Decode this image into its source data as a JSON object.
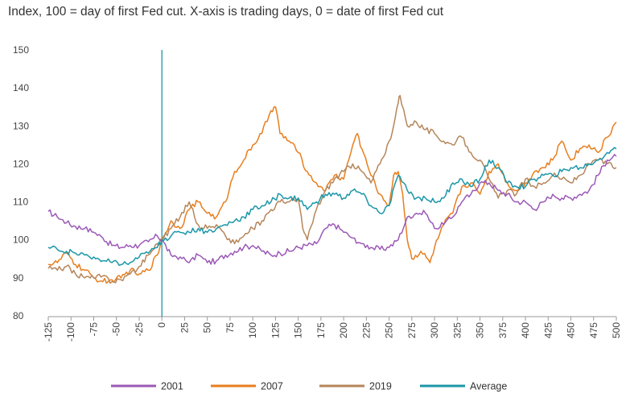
{
  "chart_data": {
    "type": "line",
    "subtitle": "Index, 100 = day of first Fed cut. X-axis is trading days, 0 = date of first Fed cut",
    "xlabel": "",
    "ylabel": "",
    "xlim": [
      -125,
      500
    ],
    "ylim": [
      80,
      150
    ],
    "x_ticks": [
      -125,
      -100,
      -75,
      -50,
      -25,
      0,
      25,
      50,
      75,
      100,
      125,
      150,
      175,
      200,
      225,
      250,
      275,
      300,
      325,
      350,
      375,
      400,
      425,
      450,
      475,
      500
    ],
    "y_ticks": [
      80,
      90,
      100,
      110,
      120,
      130,
      140,
      150
    ],
    "grid": false,
    "legend_position": "bottom",
    "vertical_marker_x": 0,
    "series": [
      {
        "name": "2001",
        "color": "#9b59b6",
        "points": [
          [
            -125,
            107.5
          ],
          [
            -115,
            106
          ],
          [
            -105,
            104.5
          ],
          [
            -95,
            103.5
          ],
          [
            -85,
            103
          ],
          [
            -75,
            102
          ],
          [
            -65,
            100.5
          ],
          [
            -55,
            98.5
          ],
          [
            -45,
            98
          ],
          [
            -35,
            98.5
          ],
          [
            -25,
            98.5
          ],
          [
            -15,
            99.5
          ],
          [
            -5,
            101
          ],
          [
            0,
            100
          ],
          [
            10,
            96
          ],
          [
            20,
            95.5
          ],
          [
            30,
            94
          ],
          [
            40,
            96
          ],
          [
            50,
            94
          ],
          [
            60,
            94.5
          ],
          [
            70,
            96
          ],
          [
            80,
            97
          ],
          [
            90,
            98
          ],
          [
            100,
            98.5
          ],
          [
            110,
            97
          ],
          [
            120,
            96
          ],
          [
            130,
            96.5
          ],
          [
            140,
            97
          ],
          [
            150,
            98
          ],
          [
            160,
            98.5
          ],
          [
            170,
            99
          ],
          [
            180,
            103
          ],
          [
            190,
            104
          ],
          [
            200,
            102
          ],
          [
            210,
            100.5
          ],
          [
            220,
            99
          ],
          [
            230,
            98
          ],
          [
            240,
            97.5
          ],
          [
            250,
            98
          ],
          [
            260,
            100
          ],
          [
            270,
            106
          ],
          [
            280,
            107
          ],
          [
            290,
            107
          ],
          [
            300,
            103
          ],
          [
            310,
            104
          ],
          [
            320,
            106
          ],
          [
            330,
            110
          ],
          [
            340,
            112
          ],
          [
            350,
            115
          ],
          [
            360,
            115
          ],
          [
            370,
            113
          ],
          [
            380,
            112
          ],
          [
            390,
            110
          ],
          [
            400,
            110
          ],
          [
            410,
            108
          ],
          [
            420,
            110
          ],
          [
            430,
            112
          ],
          [
            440,
            111
          ],
          [
            450,
            111
          ],
          [
            460,
            112
          ],
          [
            470,
            113
          ],
          [
            480,
            117
          ],
          [
            490,
            121
          ],
          [
            500,
            122
          ]
        ]
      },
      {
        "name": "2007",
        "color": "#e87e1e",
        "points": [
          [
            -125,
            93.5
          ],
          [
            -115,
            94
          ],
          [
            -105,
            96.5
          ],
          [
            -95,
            93.5
          ],
          [
            -85,
            92
          ],
          [
            -75,
            90
          ],
          [
            -65,
            89
          ],
          [
            -55,
            89.5
          ],
          [
            -45,
            90
          ],
          [
            -35,
            92
          ],
          [
            -25,
            91
          ],
          [
            -15,
            92
          ],
          [
            -5,
            96
          ],
          [
            0,
            100
          ],
          [
            10,
            105
          ],
          [
            20,
            103
          ],
          [
            30,
            108
          ],
          [
            40,
            110
          ],
          [
            50,
            107
          ],
          [
            60,
            106
          ],
          [
            70,
            110
          ],
          [
            80,
            118
          ],
          [
            90,
            121
          ],
          [
            100,
            125
          ],
          [
            110,
            128
          ],
          [
            120,
            134
          ],
          [
            125,
            135
          ],
          [
            130,
            128
          ],
          [
            140,
            126
          ],
          [
            150,
            123
          ],
          [
            160,
            118
          ],
          [
            170,
            115
          ],
          [
            180,
            113
          ],
          [
            190,
            117
          ],
          [
            200,
            116
          ],
          [
            210,
            125
          ],
          [
            215,
            128
          ],
          [
            220,
            124
          ],
          [
            230,
            117
          ],
          [
            240,
            112
          ],
          [
            250,
            109
          ],
          [
            255,
            117
          ],
          [
            260,
            118
          ],
          [
            265,
            112
          ],
          [
            270,
            100
          ],
          [
            275,
            95
          ],
          [
            285,
            97
          ],
          [
            295,
            94
          ],
          [
            300,
            98
          ],
          [
            310,
            104
          ],
          [
            320,
            107
          ],
          [
            330,
            114
          ],
          [
            340,
            115
          ],
          [
            350,
            112
          ],
          [
            360,
            118
          ],
          [
            370,
            120
          ],
          [
            380,
            115
          ],
          [
            390,
            113
          ],
          [
            400,
            115
          ],
          [
            410,
            118
          ],
          [
            420,
            119
          ],
          [
            430,
            121
          ],
          [
            440,
            126
          ],
          [
            450,
            121
          ],
          [
            460,
            124
          ],
          [
            470,
            125
          ],
          [
            480,
            123
          ],
          [
            490,
            127
          ],
          [
            500,
            131
          ]
        ]
      },
      {
        "name": "2019",
        "color": "#b5865a",
        "points": [
          [
            -125,
            92.5
          ],
          [
            -115,
            92
          ],
          [
            -105,
            93
          ],
          [
            -95,
            91
          ],
          [
            -85,
            90
          ],
          [
            -75,
            90
          ],
          [
            -65,
            90.5
          ],
          [
            -55,
            89
          ],
          [
            -45,
            89.5
          ],
          [
            -35,
            91
          ],
          [
            -25,
            93
          ],
          [
            -15,
            96
          ],
          [
            -5,
            99
          ],
          [
            0,
            100
          ],
          [
            10,
            103
          ],
          [
            20,
            106
          ],
          [
            30,
            110
          ],
          [
            40,
            104
          ],
          [
            50,
            103
          ],
          [
            60,
            104
          ],
          [
            70,
            101
          ],
          [
            80,
            99
          ],
          [
            90,
            101
          ],
          [
            100,
            103
          ],
          [
            110,
            105
          ],
          [
            120,
            108
          ],
          [
            130,
            110
          ],
          [
            140,
            110
          ],
          [
            150,
            111
          ],
          [
            155,
            103
          ],
          [
            160,
            100
          ],
          [
            170,
            108
          ],
          [
            180,
            113
          ],
          [
            190,
            116
          ],
          [
            200,
            118
          ],
          [
            210,
            120
          ],
          [
            220,
            118
          ],
          [
            230,
            115
          ],
          [
            240,
            120
          ],
          [
            250,
            126
          ],
          [
            255,
            130
          ],
          [
            260,
            136
          ],
          [
            262,
            138
          ],
          [
            270,
            130
          ],
          [
            280,
            131
          ],
          [
            290,
            129
          ],
          [
            300,
            128
          ],
          [
            310,
            126
          ],
          [
            320,
            125
          ],
          [
            330,
            127
          ],
          [
            340,
            123
          ],
          [
            350,
            121
          ],
          [
            360,
            116
          ],
          [
            370,
            111
          ],
          [
            380,
            113
          ],
          [
            390,
            112
          ],
          [
            400,
            116
          ],
          [
            410,
            114
          ],
          [
            420,
            115
          ],
          [
            430,
            117
          ],
          [
            440,
            116
          ],
          [
            450,
            115
          ],
          [
            460,
            117
          ],
          [
            470,
            120
          ],
          [
            480,
            121
          ],
          [
            490,
            120
          ],
          [
            500,
            119
          ]
        ]
      },
      {
        "name": "Average",
        "color": "#1b97a8",
        "points": [
          [
            -125,
            98
          ],
          [
            -115,
            97.5
          ],
          [
            -105,
            97
          ],
          [
            -95,
            96.5
          ],
          [
            -85,
            96
          ],
          [
            -75,
            95.5
          ],
          [
            -65,
            94.5
          ],
          [
            -55,
            94
          ],
          [
            -45,
            93.5
          ],
          [
            -35,
            94
          ],
          [
            -25,
            95.5
          ],
          [
            -15,
            96.5
          ],
          [
            -5,
            98
          ],
          [
            0,
            100
          ],
          [
            10,
            101
          ],
          [
            20,
            102
          ],
          [
            30,
            102
          ],
          [
            40,
            103
          ],
          [
            50,
            102
          ],
          [
            60,
            103
          ],
          [
            70,
            104
          ],
          [
            80,
            105
          ],
          [
            90,
            106
          ],
          [
            100,
            108
          ],
          [
            110,
            109
          ],
          [
            120,
            110
          ],
          [
            130,
            112
          ],
          [
            140,
            111
          ],
          [
            150,
            111
          ],
          [
            160,
            108
          ],
          [
            170,
            110
          ],
          [
            180,
            112
          ],
          [
            190,
            112
          ],
          [
            200,
            111
          ],
          [
            210,
            113
          ],
          [
            220,
            112
          ],
          [
            230,
            109
          ],
          [
            240,
            107
          ],
          [
            250,
            109
          ],
          [
            260,
            117
          ],
          [
            270,
            113
          ],
          [
            280,
            111
          ],
          [
            290,
            111
          ],
          [
            300,
            110
          ],
          [
            310,
            111
          ],
          [
            320,
            115
          ],
          [
            330,
            116
          ],
          [
            340,
            114
          ],
          [
            350,
            116
          ],
          [
            360,
            121
          ],
          [
            370,
            119
          ],
          [
            380,
            115
          ],
          [
            390,
            114
          ],
          [
            400,
            114
          ],
          [
            410,
            116
          ],
          [
            420,
            117
          ],
          [
            430,
            117
          ],
          [
            440,
            118
          ],
          [
            450,
            119
          ],
          [
            460,
            119
          ],
          [
            470,
            120
          ],
          [
            480,
            121
          ],
          [
            490,
            123
          ],
          [
            500,
            124
          ]
        ]
      }
    ]
  }
}
